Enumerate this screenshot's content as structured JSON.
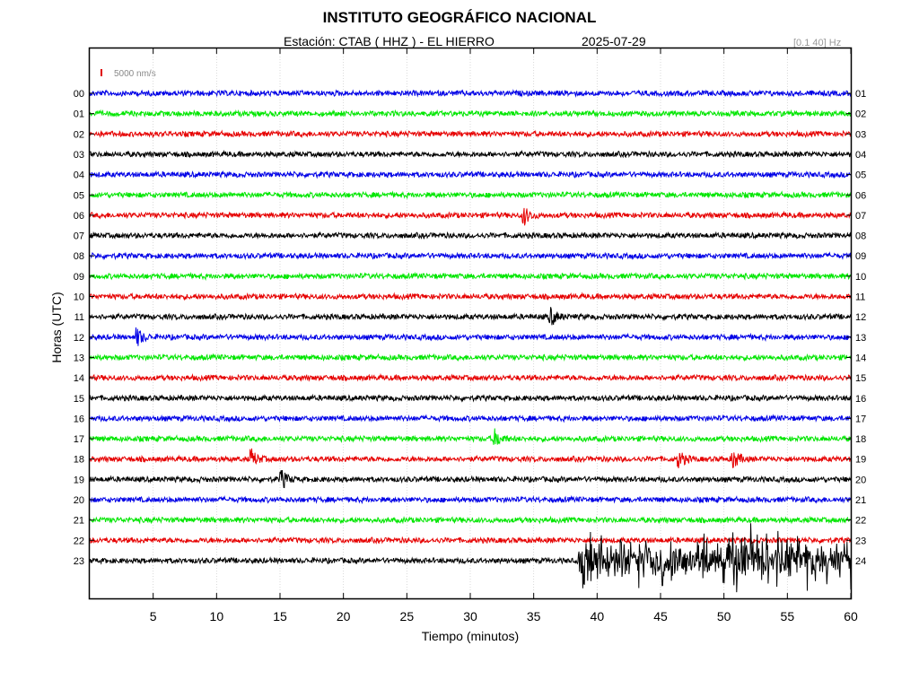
{
  "header": {
    "title": "INSTITUTO GEOGRÁFICO NACIONAL",
    "station": "Estación:  CTAB ( HHZ ) - EL HIERRO",
    "date": "2025-07-29",
    "filter": "[0.1 40] Hz"
  },
  "scale_bar": {
    "label": "5000 nm/s",
    "color": "#e00000"
  },
  "chart_data": {
    "type": "line",
    "xlabel": "Tiempo (minutos)",
    "ylabel": "Horas (UTC)",
    "xlim": [
      0,
      60
    ],
    "x_ticks": [
      5,
      10,
      15,
      20,
      25,
      30,
      35,
      40,
      45,
      50,
      55,
      60
    ],
    "grid": true,
    "left_labels": [
      "00",
      "01",
      "02",
      "03",
      "04",
      "05",
      "06",
      "07",
      "08",
      "09",
      "10",
      "11",
      "12",
      "13",
      "14",
      "15",
      "16",
      "17",
      "18",
      "19",
      "20",
      "21",
      "22",
      "23"
    ],
    "right_labels": [
      "01",
      "02",
      "03",
      "04",
      "05",
      "06",
      "07",
      "08",
      "09",
      "10",
      "11",
      "12",
      "13",
      "14",
      "15",
      "16",
      "17",
      "18",
      "19",
      "20",
      "21",
      "22",
      "23",
      "24"
    ],
    "trace_colors": [
      "#0000e6",
      "#00e600",
      "#e60000",
      "#000000"
    ],
    "events": [
      {
        "hour": "06",
        "minute": 34.3
      },
      {
        "hour": "11",
        "minute": 36.4
      },
      {
        "hour": "12",
        "minute": 3.8
      },
      {
        "hour": "17",
        "minute": 32.0
      },
      {
        "hour": "18",
        "minute": 12.8
      },
      {
        "hour": "18",
        "minute": 46.5
      },
      {
        "hour": "18",
        "minute": 50.8
      },
      {
        "hour": "19",
        "minute": 15.2
      },
      {
        "hour": "23",
        "minute": 38.5
      }
    ]
  }
}
